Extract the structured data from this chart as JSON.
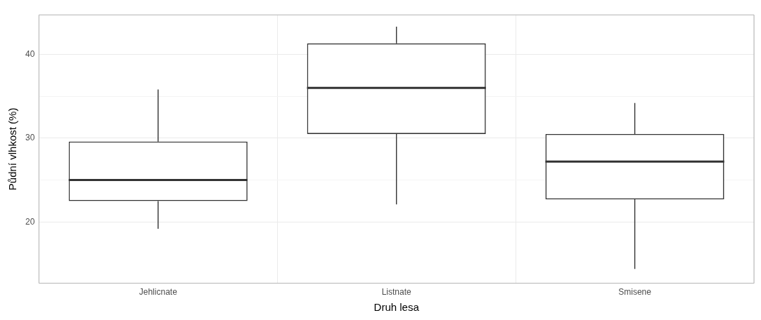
{
  "chart_data": {
    "type": "box",
    "xlabel": "Druh lesa",
    "ylabel": "Půdní vlhkost (%)",
    "categories": [
      "Jehlicnate",
      "Listnate",
      "Smisene"
    ],
    "boxes": [
      {
        "low": 19.2,
        "q1": 22.5,
        "median": 25.0,
        "q3": 29.6,
        "high": 35.8
      },
      {
        "low": 22.1,
        "q1": 30.5,
        "median": 36.0,
        "q3": 41.3,
        "high": 43.3
      },
      {
        "low": 14.4,
        "q1": 22.7,
        "median": 27.2,
        "q3": 30.5,
        "high": 34.2
      }
    ],
    "color": "#333333",
    "ylim": [
      12.7,
      44.7
    ],
    "yticks": [
      20,
      {
        "value": 25,
        "label": null
      },
      30,
      {
        "value": 35,
        "label": null
      },
      40
    ],
    "grid": true,
    "legend": false
  }
}
